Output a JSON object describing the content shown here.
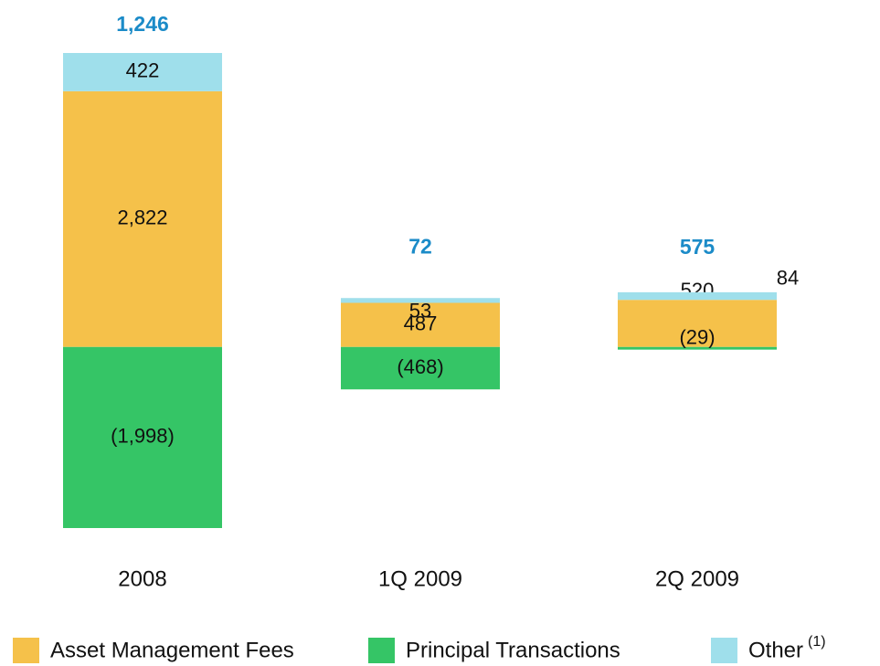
{
  "chart_data": {
    "type": "stacked_bar",
    "categories": [
      "2008",
      "1Q 2009",
      "2Q 2009"
    ],
    "series": [
      {
        "name": "Asset Management Fees",
        "color": "#f5c14a",
        "values": [
          2822,
          487,
          520
        ],
        "value_labels": [
          "2,822",
          "487",
          "520"
        ]
      },
      {
        "name": "Principal Transactions",
        "color": "#35c566",
        "values": [
          -1998,
          -468,
          -29
        ],
        "value_labels": [
          "(1,998)",
          "(468)",
          "(29)"
        ]
      },
      {
        "name": "Other",
        "name_note": "(1)",
        "color": "#9fdfeb",
        "values": [
          422,
          53,
          84
        ],
        "value_labels": [
          "422",
          "53",
          "84"
        ]
      }
    ],
    "totals": [
      1246,
      72,
      575
    ],
    "total_labels": [
      "1,246",
      "72",
      "575"
    ],
    "total_color": "#1b8bc8"
  }
}
